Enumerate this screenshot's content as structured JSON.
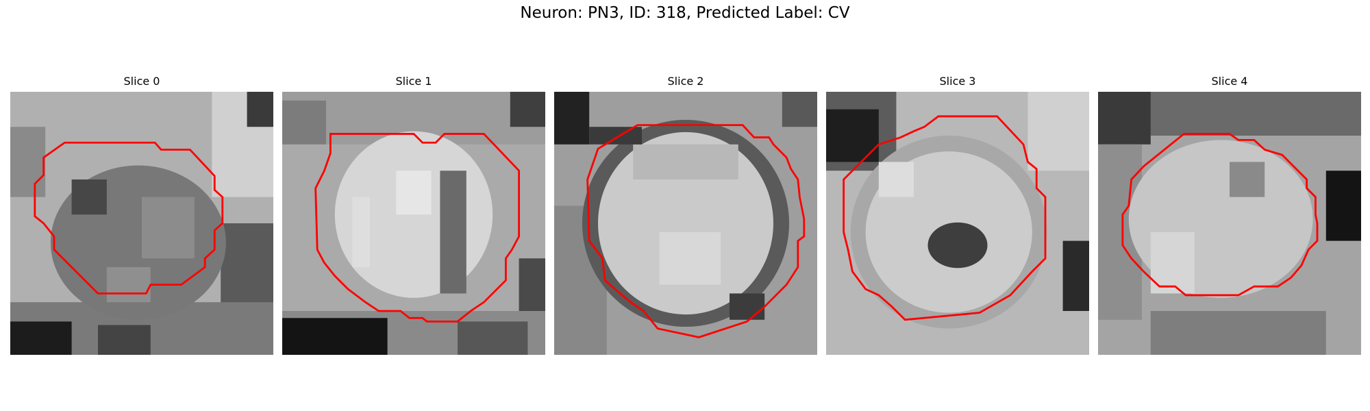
{
  "title": "Neuron: PN3, ID: 318, Predicted Label: CV",
  "slices": [
    {
      "label": "Slice 0"
    },
    {
      "label": "Slice 1"
    },
    {
      "label": "Slice 2"
    },
    {
      "label": "Slice 3"
    },
    {
      "label": "Slice 4"
    }
  ],
  "colors": {
    "contour": "#ff0000",
    "background": "#ffffff"
  }
}
